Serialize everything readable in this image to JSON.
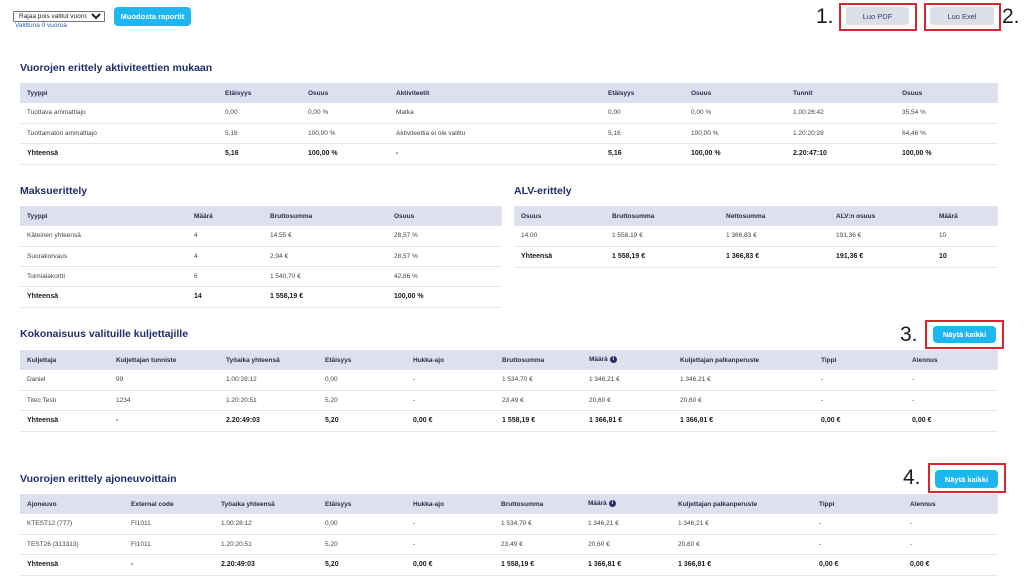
{
  "toolbar": {
    "filter_value": "Rajaa pois valitut vuorot",
    "filter_options": [
      "Rajaa pois valitut vuorot"
    ],
    "selected_count": "Valittuna 0 vuoroa",
    "generate_label": "Muodosta raportit",
    "pdf_label": "Luo PDF",
    "excel_label": "Luo Exel"
  },
  "annotations": {
    "n1": "1.",
    "n2": "2.",
    "n3": "3.",
    "n4": "4.",
    "color": "#d9262c"
  },
  "activities": {
    "title": "Vuorojen erittely aktiviteettien mukaan",
    "headers": [
      "Tyyppi",
      "Etäisyys",
      "Osuus",
      "Aktiviteetit",
      "Etäisyys",
      "Osuus",
      "Tunnit",
      "Osuus"
    ],
    "rows": [
      [
        "Tuottava ammattiajo",
        "0,00",
        "0,00 %",
        "Matka",
        "0,00",
        "0,00 %",
        "1.00:26:42",
        "35,54 %"
      ],
      [
        "Tuottamaton ammattiajo",
        "5,16",
        "100,00 %",
        "Aktiviteettia ei ole valittu",
        "5,16",
        "100,00 %",
        "1.20:20:28",
        "64,46 %"
      ]
    ],
    "total": [
      "Yhteensä",
      "5,16",
      "100,00 %",
      "-",
      "5,16",
      "100,00 %",
      "2.20:47:10",
      "100,00 %"
    ]
  },
  "payments": {
    "title": "Maksuerittely",
    "headers": [
      "Tyyppi",
      "Määrä",
      "Bruttosumma",
      "Osuus"
    ],
    "rows": [
      [
        "Käteinen yhteensä",
        "4",
        "14,55 €",
        "28,57 %"
      ],
      [
        "Suorakorvaus",
        "4",
        "2,94 €",
        "28,57 %"
      ],
      [
        "Toimialakortti",
        "6",
        "1 540,70 €",
        "42,86 %"
      ]
    ],
    "total": [
      "Yhteensä",
      "14",
      "1 558,19 €",
      "100,00 %"
    ]
  },
  "vat": {
    "title": "ALV-erittely",
    "headers": [
      "Osuus",
      "Bruttosumma",
      "Nettosumma",
      "ALV:n osuus",
      "Määrä"
    ],
    "rows": [
      [
        "14.00",
        "1 558,19 €",
        "1 366,83 €",
        "191,36 €",
        "10"
      ]
    ],
    "total": [
      "Yhteensä",
      "1 558,19 €",
      "1 366,83 €",
      "191,36 €",
      "10"
    ]
  },
  "drivers": {
    "title": "Kokonaisuus valituille kuljettajille",
    "show_all_label": "Näytä kaikki",
    "headers": [
      "Kuljettaja",
      "Kuljettajan tunniste",
      "Työaika yhteensä",
      "Etäisyys",
      "Hukka-ajo",
      "Bruttosumma",
      "Määrä",
      "Kuljettajan palkanperuste",
      "Tippi",
      "Alennus"
    ],
    "rows": [
      [
        "Daniel",
        "99",
        "1.00:28:12",
        "0,00",
        "-",
        "1 534,70 €",
        "1 346,21 €",
        "1 346,21 €",
        "-",
        "-"
      ],
      [
        "Titec Testi",
        "1234",
        "1.20:20:51",
        "5,20",
        "-",
        "23,49 €",
        "20,60 €",
        "20,60 €",
        "-",
        "-"
      ]
    ],
    "total": [
      "Yhteensä",
      "-",
      "2.20:49:03",
      "5,20",
      "0,00 €",
      "1 558,19 €",
      "1 366,81 €",
      "1 366,81 €",
      "0,00 €",
      "0,00 €"
    ]
  },
  "vehicles": {
    "title": "Vuorojen erittely ajoneuvoittain",
    "show_all_label": "Näytä kaikki",
    "headers": [
      "Ajoneuvo",
      "External code",
      "Työaika yhteensä",
      "Etäisyys",
      "Hukka-ajo",
      "Bruttosumma",
      "Määrä",
      "Kuljettajan palkanperuste",
      "Tippi",
      "Alennus"
    ],
    "rows": [
      [
        "KTEST12 (777)",
        "FI1011",
        "1.00:28:12",
        "0,00",
        "-",
        "1 534,70 €",
        "1 346,21 €",
        "1 346,21 €",
        "-",
        "-"
      ],
      [
        "TEST26 (313313)",
        "FI1011",
        "1.20:20:51",
        "5,20",
        "-",
        "23,49 €",
        "20,60 €",
        "20,60 €",
        "-",
        "-"
      ]
    ],
    "total": [
      "Yhteensä",
      "-",
      "2.20:49:03",
      "5,20",
      "0,00 €",
      "1 558,19 €",
      "1 366,81 €",
      "1 366,81 €",
      "0,00 €",
      "0,00 €"
    ]
  }
}
